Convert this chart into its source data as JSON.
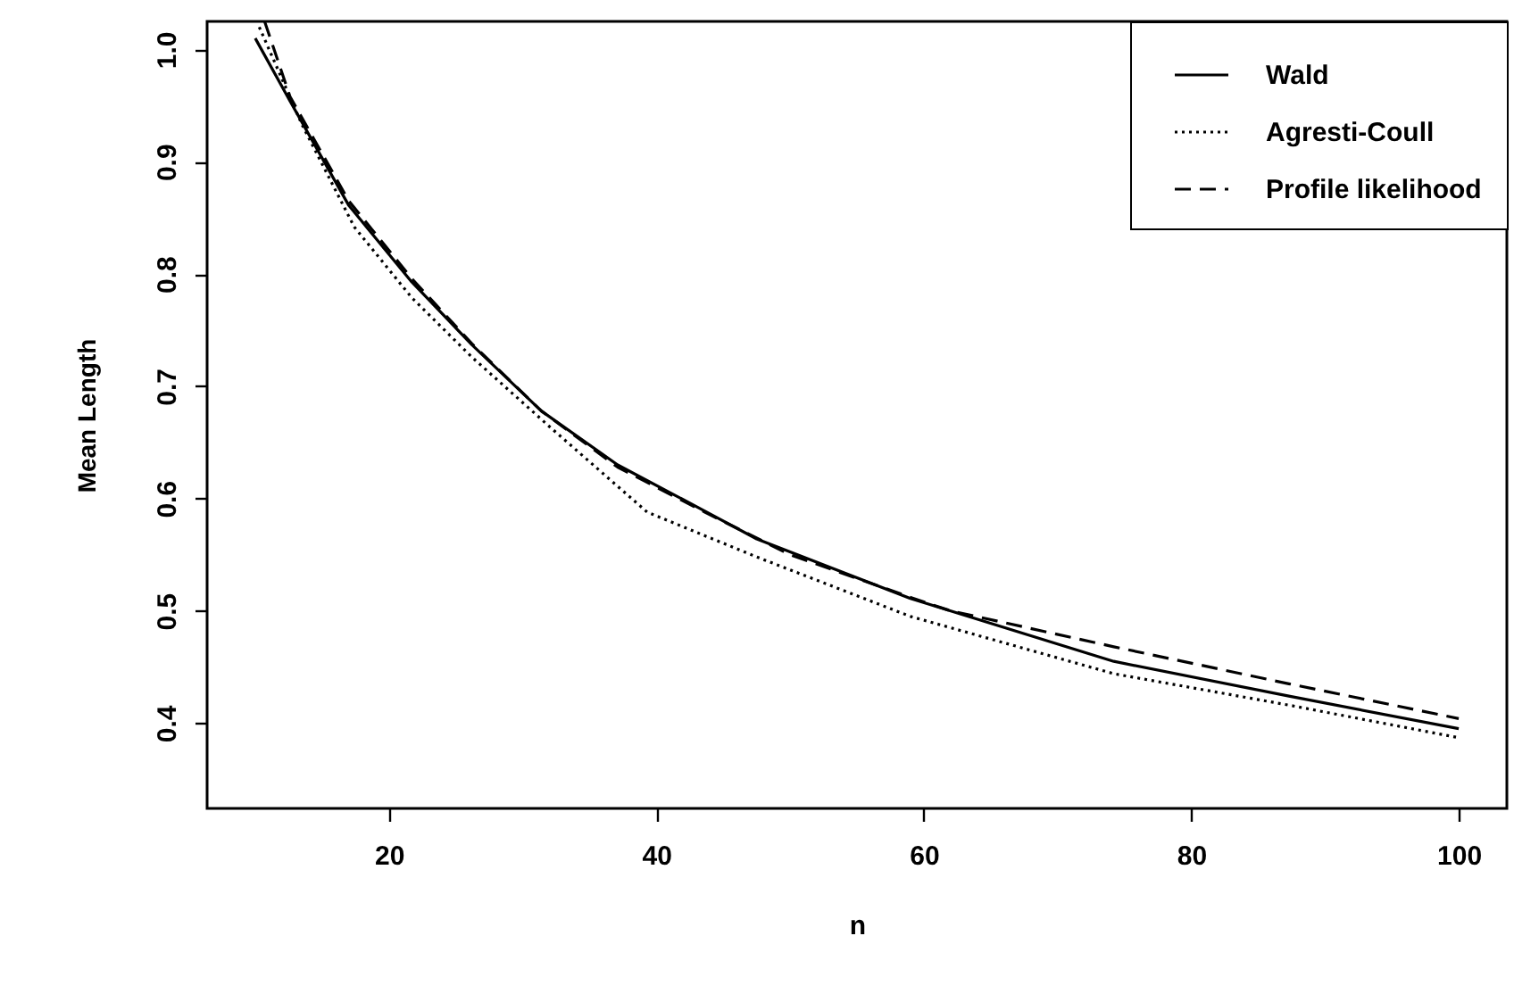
{
  "chart_data": {
    "type": "line",
    "xlabel": "n",
    "ylabel": "Mean Length",
    "xlim": [
      6.4,
      103.6
    ],
    "ylim": [
      0.324,
      1.025
    ],
    "xticks": [
      20,
      40,
      60,
      80,
      100
    ],
    "yticks": [
      0.4,
      0.5,
      0.6,
      0.7,
      0.8,
      0.9,
      {
        "value": 1,
        "label": "1.0"
      }
    ],
    "grid": false,
    "legend": "top right",
    "marker": "none",
    "series": [
      {
        "name": "Wald",
        "color": "#000000",
        "line_style": "solid",
        "x": [
          10,
          12.6,
          17,
          21.7,
          26.2,
          31.4,
          37.1,
          43.6,
          47.5,
          59,
          74.2,
          87.3,
          100
        ],
        "values": [
          1.01,
          0.954,
          0.861,
          0.793,
          0.737,
          0.678,
          0.63,
          0.589,
          0.564,
          0.511,
          0.455,
          0.424,
          0.395
        ]
      },
      {
        "name": "Agresti-Coull",
        "color": "#000000",
        "line_style": "dotted",
        "x": [
          10.3,
          13.5,
          17.4,
          21.7,
          26.2,
          32.2,
          39.3,
          43.6,
          47.5,
          59,
          74.2,
          87.3,
          100
        ],
        "values": [
          1.02,
          0.933,
          0.842,
          0.779,
          0.726,
          0.662,
          0.588,
          0.567,
          0.548,
          0.495,
          0.444,
          0.416,
          0.387
        ]
      },
      {
        "name": "Profile likelihood",
        "color": "#000000",
        "line_style": "dashed",
        "x": [
          10.7,
          12.6,
          17,
          21.7,
          26.2,
          31.4,
          37.1,
          43.6,
          50,
          59,
          62,
          74.2,
          87.3,
          100
        ],
        "values": [
          1.025,
          0.958,
          0.865,
          0.796,
          0.738,
          0.678,
          0.628,
          0.588,
          0.55,
          0.512,
          0.5,
          0.468,
          0.435,
          0.404
        ]
      }
    ]
  }
}
